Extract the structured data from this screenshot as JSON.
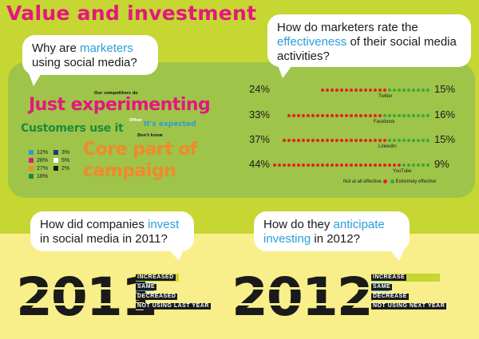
{
  "title": "Value and investment",
  "q1": {
    "pre": "Why are ",
    "hl": "marketers",
    "post": " using social media?"
  },
  "q2": {
    "pre": "How do marketers rate the ",
    "hl": "effectiveness",
    "post": " of their social media activities?"
  },
  "q3": {
    "pre": "How did companies ",
    "hl": "invest",
    "post": " in social media in 2011?"
  },
  "q4": {
    "pre": "How do they ",
    "hl": "anticipate",
    "post2": "investing",
    "post": " in 2012?"
  },
  "cloud": [
    {
      "text": "Our competitors do",
      "color": "#1a1a1a"
    },
    {
      "text": "Just experimenting",
      "color": "#e4177d"
    },
    {
      "text": "Other",
      "color": "#ffffff"
    },
    {
      "text": "It's expected",
      "color": "#2a9ed8"
    },
    {
      "text": "Customers use it",
      "color": "#1f8a3a"
    },
    {
      "text": "Don't know",
      "color": "#1a1a1a"
    },
    {
      "text": "Core part of",
      "color": "#f08a2b"
    },
    {
      "text": "campaign",
      "color": "#f08a2b"
    }
  ],
  "legend": [
    {
      "pct": "12%",
      "color": "#2a9ed8"
    },
    {
      "pct": "3%",
      "color": "#1f3a78"
    },
    {
      "pct": "28%",
      "color": "#e4177d"
    },
    {
      "pct": "5%",
      "color": "#ffffff"
    },
    {
      "pct": "27%",
      "color": "#f08a2b"
    },
    {
      "pct": "2%",
      "color": "#1a1a1a"
    },
    {
      "pct": "18%",
      "color": "#1f8a3a"
    }
  ],
  "effectiveness": [
    {
      "platform": "Twitter",
      "not_effective": "24%",
      "extremely_effective": "15%",
      "red_dots": 14,
      "green_dots": 9
    },
    {
      "platform": "Facebook",
      "not_effective": "33%",
      "extremely_effective": "16%",
      "red_dots": 20,
      "green_dots": 10
    },
    {
      "platform": "LinkedIn",
      "not_effective": "37%",
      "extremely_effective": "15%",
      "red_dots": 22,
      "green_dots": 9
    },
    {
      "platform": "YouTube",
      "not_effective": "44%",
      "extremely_effective": "9%",
      "red_dots": 27,
      "green_dots": 6
    }
  ],
  "effectiveness_legend": {
    "not": "Not at all effective",
    "extremely": "Extremely effective",
    "red": "#e2231a",
    "green": "#3aa935"
  },
  "y2011": {
    "year": "2011",
    "bars": [
      {
        "label": "Increased",
        "value": 60,
        "color": "#c6d632"
      },
      {
        "label": "Same",
        "value": 25,
        "color": "#2a9ed8"
      },
      {
        "label": "Decreased",
        "value": 4,
        "color": "#f08a2b"
      },
      {
        "label": "Not using last year",
        "value": 11,
        "color": "#f8ef8a"
      }
    ]
  },
  "y2012": {
    "year": "2012",
    "bars": [
      {
        "label": "Increase",
        "value": 75,
        "color": "#c6d632"
      },
      {
        "label": "Same",
        "value": 20,
        "color": "#2a9ed8"
      },
      {
        "label": "Decrease",
        "value": 2,
        "color": "#f08a2b"
      },
      {
        "label": "Not using next year",
        "value": 3,
        "color": "#f8ef8a"
      }
    ]
  }
}
